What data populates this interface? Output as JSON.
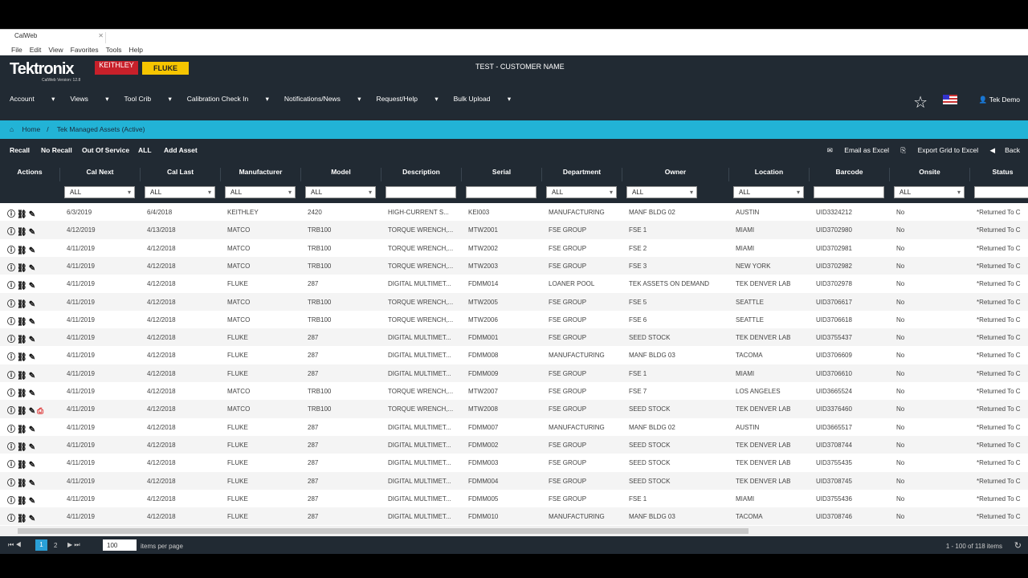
{
  "browser": {
    "tab_title": "CalWeb",
    "menu": [
      "File",
      "Edit",
      "View",
      "Favorites",
      "Tools",
      "Help"
    ]
  },
  "header": {
    "logo": "Tektronix",
    "version": "CalWeb Version: 12.8",
    "keithley": "KEITHLEY",
    "fluke": "FLUKE",
    "customer": "TEST - CUSTOMER NAME",
    "user": "Tek Demo",
    "nav": [
      "Account",
      "Views",
      "Tool Crib",
      "Calibration Check In",
      "Notifications/News",
      "Request/Help",
      "Bulk Upload"
    ]
  },
  "breadcrumb": {
    "home": "Home",
    "current": "Tek Managed Assets (Active)"
  },
  "toolbar": {
    "buttons": [
      "Recall",
      "No Recall",
      "Out Of Service",
      "ALL",
      "Add Asset"
    ],
    "email": "Email as Excel",
    "export": "Export Grid to Excel",
    "back": "Back"
  },
  "columns": [
    "Actions",
    "Cal Next",
    "Cal Last",
    "Manufacturer",
    "Model",
    "Description",
    "Serial",
    "Department",
    "Owner",
    "Location",
    "Barcode",
    "Onsite",
    "Status"
  ],
  "filter_all": "ALL",
  "rows": [
    [
      "6/3/2019",
      "6/4/2018",
      "KEITHLEY",
      "2420",
      "HIGH-CURRENT S...",
      "KEI003",
      "MANUFACTURING",
      "MANF BLDG 02",
      "AUSTIN",
      "UID3324212",
      "No",
      "*Returned To C"
    ],
    [
      "4/12/2019",
      "4/13/2018",
      "MATCO",
      "TRB100",
      "TORQUE WRENCH,...",
      "MTW2001",
      "FSE GROUP",
      "FSE 1",
      "MIAMI",
      "UID3702980",
      "No",
      "*Returned To C"
    ],
    [
      "4/11/2019",
      "4/12/2018",
      "MATCO",
      "TRB100",
      "TORQUE WRENCH,...",
      "MTW2002",
      "FSE GROUP",
      "FSE 2",
      "MIAMI",
      "UID3702981",
      "No",
      "*Returned To C"
    ],
    [
      "4/11/2019",
      "4/12/2018",
      "MATCO",
      "TRB100",
      "TORQUE WRENCH,...",
      "MTW2003",
      "FSE GROUP",
      "FSE 3",
      "NEW YORK",
      "UID3702982",
      "No",
      "*Returned To C"
    ],
    [
      "4/11/2019",
      "4/12/2018",
      "FLUKE",
      "287",
      "DIGITAL MULTIMET...",
      "FDMM014",
      "LOANER POOL",
      "TEK ASSETS ON DEMAND",
      "TEK DENVER LAB",
      "UID3702978",
      "No",
      "*Returned To C"
    ],
    [
      "4/11/2019",
      "4/12/2018",
      "MATCO",
      "TRB100",
      "TORQUE WRENCH,...",
      "MTW2005",
      "FSE GROUP",
      "FSE 5",
      "SEATTLE",
      "UID3706617",
      "No",
      "*Returned To C"
    ],
    [
      "4/11/2019",
      "4/12/2018",
      "MATCO",
      "TRB100",
      "TORQUE WRENCH,...",
      "MTW2006",
      "FSE GROUP",
      "FSE 6",
      "SEATTLE",
      "UID3706618",
      "No",
      "*Returned To C"
    ],
    [
      "4/11/2019",
      "4/12/2018",
      "FLUKE",
      "287",
      "DIGITAL MULTIMET...",
      "FDMM001",
      "FSE GROUP",
      "SEED STOCK",
      "TEK DENVER LAB",
      "UID3755437",
      "No",
      "*Returned To C"
    ],
    [
      "4/11/2019",
      "4/12/2018",
      "FLUKE",
      "287",
      "DIGITAL MULTIMET...",
      "FDMM008",
      "MANUFACTURING",
      "MANF BLDG 03",
      "TACOMA",
      "UID3706609",
      "No",
      "*Returned To C"
    ],
    [
      "4/11/2019",
      "4/12/2018",
      "FLUKE",
      "287",
      "DIGITAL MULTIMET...",
      "FDMM009",
      "FSE GROUP",
      "FSE 1",
      "MIAMI",
      "UID3706610",
      "No",
      "*Returned To C"
    ],
    [
      "4/11/2019",
      "4/12/2018",
      "MATCO",
      "TRB100",
      "TORQUE WRENCH,...",
      "MTW2007",
      "FSE GROUP",
      "FSE 7",
      "LOS ANGELES",
      "UID3665524",
      "No",
      "*Returned To C"
    ],
    [
      "4/11/2019",
      "4/12/2018",
      "MATCO",
      "TRB100",
      "TORQUE WRENCH,...",
      "MTW2008",
      "FSE GROUP",
      "SEED STOCK",
      "TEK DENVER LAB",
      "UID3376460",
      "No",
      "*Returned To C"
    ],
    [
      "4/11/2019",
      "4/12/2018",
      "FLUKE",
      "287",
      "DIGITAL MULTIMET...",
      "FDMM007",
      "MANUFACTURING",
      "MANF BLDG 02",
      "AUSTIN",
      "UID3665517",
      "No",
      "*Returned To C"
    ],
    [
      "4/11/2019",
      "4/12/2018",
      "FLUKE",
      "287",
      "DIGITAL MULTIMET...",
      "FDMM002",
      "FSE GROUP",
      "SEED STOCK",
      "TEK DENVER LAB",
      "UID3708744",
      "No",
      "*Returned To C"
    ],
    [
      "4/11/2019",
      "4/12/2018",
      "FLUKE",
      "287",
      "DIGITAL MULTIMET...",
      "FDMM003",
      "FSE GROUP",
      "SEED STOCK",
      "TEK DENVER LAB",
      "UID3755435",
      "No",
      "*Returned To C"
    ],
    [
      "4/11/2019",
      "4/12/2018",
      "FLUKE",
      "287",
      "DIGITAL MULTIMET...",
      "FDMM004",
      "FSE GROUP",
      "SEED STOCK",
      "TEK DENVER LAB",
      "UID3708745",
      "No",
      "*Returned To C"
    ],
    [
      "4/11/2019",
      "4/12/2018",
      "FLUKE",
      "287",
      "DIGITAL MULTIMET...",
      "FDMM005",
      "FSE GROUP",
      "FSE 1",
      "MIAMI",
      "UID3755436",
      "No",
      "*Returned To C"
    ],
    [
      "4/11/2019",
      "4/12/2018",
      "FLUKE",
      "287",
      "DIGITAL MULTIMET...",
      "FDMM010",
      "MANUFACTURING",
      "MANF BLDG 03",
      "TACOMA",
      "UID3708746",
      "No",
      "*Returned To C"
    ]
  ],
  "pdf_row": 11,
  "pager": {
    "pages": [
      "1",
      "2"
    ],
    "current": "1",
    "page_size": "100",
    "per_page_label": "items per page",
    "summary": "1 - 100 of 118 items"
  }
}
